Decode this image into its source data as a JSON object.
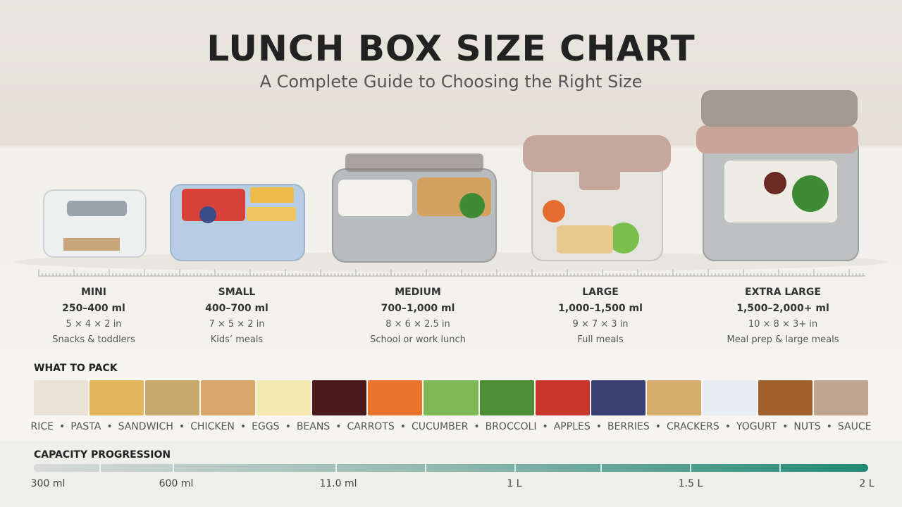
{
  "header": {
    "title": "LUNCH BOX SIZE CHART",
    "subtitle": "A Complete Guide to Choosing the Right Size"
  },
  "sizes": [
    {
      "name": "MINI",
      "capacity": "250–400 ml",
      "dimensions": "5 × 4 × 2 in",
      "use": "Snacks & toddlers"
    },
    {
      "name": "SMALL",
      "capacity": "400–700 ml",
      "dimensions": "7 × 5 × 2 in",
      "use": "Kids’ meals"
    },
    {
      "name": "MEDIUM",
      "capacity": "700–1,000 ml",
      "dimensions": "8 × 6 × 2.5 in",
      "use": "School or work lunch"
    },
    {
      "name": "LARGE",
      "capacity": "1,000–1,500 ml",
      "dimensions": "9 × 7 × 3 in",
      "use": "Full meals"
    },
    {
      "name": "EXTRA LARGE",
      "capacity": "1,500–2,000+ ml",
      "dimensions": "10 × 8 × 3+ in",
      "use": "Meal prep & large meals"
    }
  ],
  "what_to_pack": {
    "heading": "WHAT TO PACK",
    "foods": [
      "RICE",
      "PASTA",
      "SANDWICH",
      "CHICKEN",
      "EGGS",
      "BEANS",
      "CARROTS",
      "CUCUMBER",
      "BROCCOLI",
      "APPLES",
      "BERRIES",
      "CRACKERS",
      "YOGURT",
      "NUTS",
      "SAUCE"
    ]
  },
  "capacity_progression": {
    "heading": "CAPACITY PROGRESSION",
    "labels": [
      "300 ml",
      "600 ml",
      "11.0 ml",
      "1 L",
      "1.5 L",
      "2 L"
    ]
  }
}
